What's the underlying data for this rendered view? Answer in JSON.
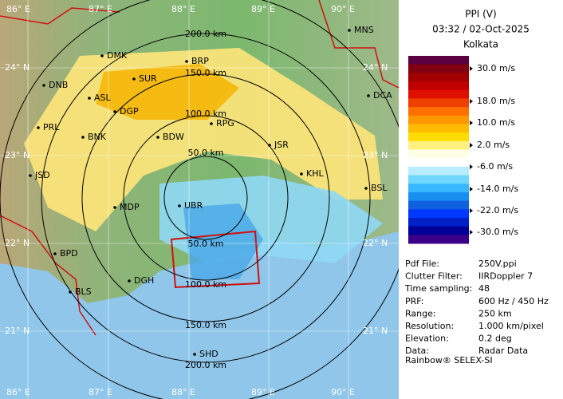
{
  "map": {
    "lon_labels": [
      "86° E",
      "87° E",
      "88° E",
      "89° E",
      "90° E"
    ],
    "lat_labels": [
      "24° N",
      "23° N",
      "22° N",
      "21° N"
    ],
    "range_labels": [
      "50.0 km",
      "100.0 km",
      "150.0 km",
      "200.0 km",
      "50.0 km",
      "100.0 km",
      "150.0 km",
      "200.0 km"
    ],
    "stations": [
      "MNS",
      "DMK",
      "BRP",
      "DNB",
      "SUR",
      "ASL",
      "DGP",
      "DCA",
      "PRL",
      "BNK",
      "RPG",
      "BDW",
      "JSR",
      "KHL",
      "JSD",
      "BSL",
      "MDP",
      "UBR",
      "BPD",
      "DGH",
      "BLS",
      "SHD"
    ]
  },
  "panel": {
    "title": "PPI (V)",
    "time": "03:32 / 02-Oct-2025",
    "site": "Kolkata",
    "scale_labels": [
      "30.0 m/s",
      "18.0 m/s",
      "10.0 m/s",
      "2.0 m/s",
      "-6.0 m/s",
      "-14.0 m/s",
      "-22.0 m/s",
      "-30.0 m/s"
    ],
    "info": [
      [
        "Pdf File:",
        "250V.ppi"
      ],
      [
        "Clutter Filter:",
        "IIRDoppler 7"
      ],
      [
        "Time sampling:",
        "48"
      ],
      [
        "PRF:",
        "600 Hz / 450 Hz"
      ],
      [
        "Range:",
        "250 km"
      ],
      [
        "Resolution:",
        "1.000 km/pixel"
      ],
      [
        "Elevation:",
        "0.2 deg"
      ],
      [
        "Data:",
        "Radar Data"
      ]
    ],
    "footer": "Rainbow® SELEX-SI"
  }
}
